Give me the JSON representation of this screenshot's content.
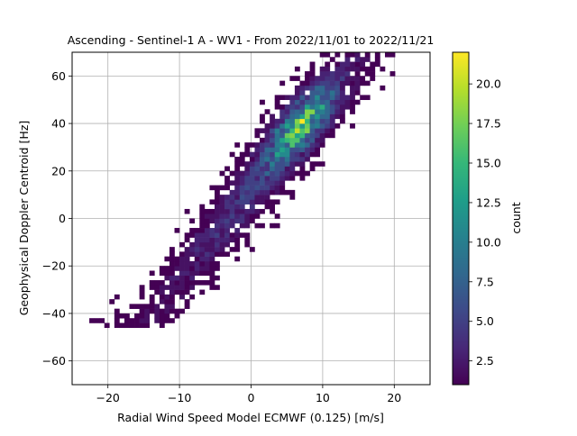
{
  "chart_data": {
    "type": "heatmap",
    "title": "Ascending - Sentinel-1 A - WV1 - From 2022/11/01 to 2022/11/21",
    "xlabel": "Radial Wind Speed Model ECMWF (0.125) [m/s]",
    "ylabel": "Geophysical Doppler Centroid [Hz]",
    "xlim": [
      -25,
      25
    ],
    "ylim": [
      -70,
      70
    ],
    "xticks": [
      -20,
      -10,
      0,
      10,
      20
    ],
    "yticks": [
      -60,
      -40,
      -20,
      0,
      20,
      40,
      60
    ],
    "grid": true,
    "colorbar": {
      "label": "count",
      "min": 1,
      "max": 22,
      "ticks": [
        2.5,
        5.0,
        7.5,
        10.0,
        12.5,
        15.0,
        17.5,
        20.0
      ],
      "tick_labels": [
        "2.5",
        "5.0",
        "7.5",
        "10.0",
        "12.5",
        "15.0",
        "17.5",
        "20.0"
      ],
      "colormap": "viridis"
    },
    "distribution": {
      "relationship": "approximately linear",
      "slope_hz_per_ms": 3.6,
      "intercept_hz": 12,
      "spread_hz": 9,
      "peak_x": 5,
      "peak_y": 45,
      "peak_count": 22,
      "x_extent": [
        -24,
        20
      ],
      "y_extent": [
        -46,
        70
      ]
    }
  }
}
